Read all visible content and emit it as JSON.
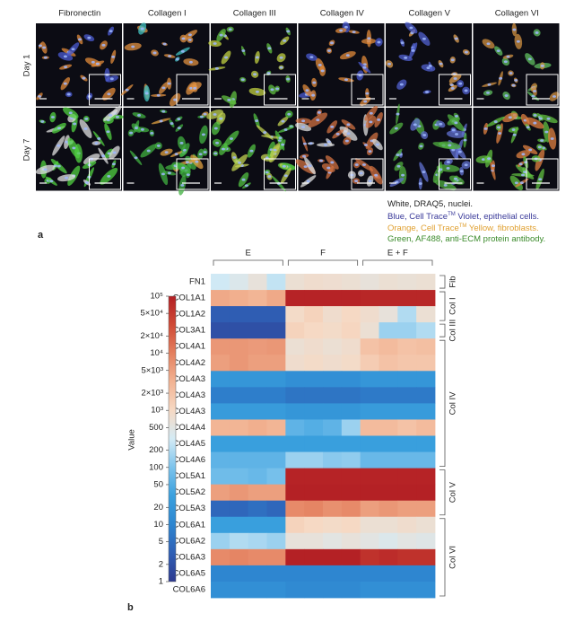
{
  "panel_a": {
    "label": "a",
    "columns": [
      "Fibronectin",
      "Collagen I",
      "Collagen III",
      "Collagen IV",
      "Collagen V",
      "Collagen VI"
    ],
    "rows": [
      "Day 1",
      "Day 7"
    ],
    "legend": [
      [
        "White, DRAQ5, nuclei."
      ],
      [
        "Blue, Cell Trace",
        "TM",
        " Violet, epithelial cells."
      ],
      [
        "Orange, Cell Trace",
        "TM",
        " Yellow, fibroblasts."
      ],
      [
        "Green, AF488, anti-ECM protein antibody."
      ]
    ]
  },
  "panel_b": {
    "label": "b"
  },
  "chart_data": {
    "type": "heatmap",
    "rows": [
      "FN1",
      "COL1A1",
      "COL1A2",
      "COL3A1",
      "COL4A1",
      "COL4A2",
      "COL4A3",
      "COL4A3",
      "COL4A3",
      "COL4A4",
      "COL4A5",
      "COL4A6",
      "COL5A1",
      "COL5A2",
      "COL5A3",
      "COL6A1",
      "COL6A2",
      "COL6A3",
      "COL6A5",
      "COL6A6"
    ],
    "column_groups": [
      "E",
      "F",
      "E + F"
    ],
    "row_groups": [
      {
        "label": "Fib",
        "start": 0,
        "end": 0
      },
      {
        "label": "Col I",
        "start": 1,
        "end": 2
      },
      {
        "label": "Col III",
        "start": 3,
        "end": 3
      },
      {
        "label": "Col IV",
        "start": 4,
        "end": 11
      },
      {
        "label": "Col V",
        "start": 12,
        "end": 14
      },
      {
        "label": "Col VI",
        "start": 15,
        "end": 19
      }
    ],
    "values": [
      [
        300,
        400,
        600,
        250,
        700,
        800,
        750,
        700,
        600,
        700,
        650,
        700
      ],
      [
        4000,
        3500,
        3000,
        4000,
        90000,
        90000,
        90000,
        90000,
        80000,
        80000,
        80000,
        80000
      ],
      [
        3,
        3,
        3,
        3,
        900,
        1200,
        800,
        1000,
        800,
        600,
        200,
        700
      ],
      [
        2,
        2,
        2,
        2,
        1200,
        1000,
        900,
        1100,
        700,
        150,
        150,
        200
      ],
      [
        6000,
        6000,
        5500,
        6000,
        700,
        800,
        700,
        800,
        2000,
        2500,
        2000,
        2200
      ],
      [
        5000,
        6000,
        5000,
        5000,
        800,
        900,
        800,
        900,
        1500,
        2000,
        1800,
        1800
      ],
      [
        20,
        20,
        20,
        20,
        15,
        15,
        15,
        15,
        20,
        20,
        20,
        20
      ],
      [
        8,
        8,
        8,
        8,
        6,
        6,
        6,
        6,
        7,
        7,
        7,
        7
      ],
      [
        25,
        25,
        25,
        25,
        20,
        20,
        20,
        20,
        25,
        25,
        25,
        25
      ],
      [
        3000,
        3000,
        3500,
        3000,
        60,
        50,
        60,
        150,
        2500,
        2500,
        2000,
        2500
      ],
      [
        30,
        30,
        30,
        30,
        30,
        30,
        30,
        30,
        30,
        30,
        30,
        30
      ],
      [
        60,
        60,
        60,
        60,
        150,
        150,
        120,
        130,
        70,
        70,
        70,
        70
      ],
      [
        80,
        80,
        70,
        90,
        90000,
        90000,
        90000,
        90000,
        90000,
        90000,
        90000,
        90000
      ],
      [
        5000,
        6000,
        5000,
        5000,
        95000,
        95000,
        95000,
        95000,
        95000,
        95000,
        95000,
        95000
      ],
      [
        4,
        4,
        5,
        4,
        8000,
        9000,
        7000,
        8000,
        5000,
        6000,
        5000,
        5000
      ],
      [
        30,
        30,
        30,
        30,
        1200,
        1000,
        900,
        1000,
        700,
        700,
        800,
        700
      ],
      [
        150,
        200,
        180,
        150,
        600,
        600,
        500,
        600,
        500,
        400,
        500,
        450
      ],
      [
        8000,
        9000,
        8000,
        8000,
        95000,
        95000,
        95000,
        95000,
        60000,
        70000,
        60000,
        60000
      ],
      [
        10,
        10,
        10,
        10,
        10,
        10,
        10,
        10,
        10,
        10,
        10,
        10
      ],
      [
        15,
        15,
        15,
        15,
        12,
        12,
        12,
        12,
        15,
        15,
        15,
        15
      ]
    ],
    "colorbar": {
      "label": "Value",
      "log_scale": true,
      "lim": [
        1,
        100000
      ],
      "ticks": [
        1,
        2,
        5,
        10,
        20,
        50,
        100,
        200,
        500,
        {
          "value": 1000,
          "label": "10³"
        },
        {
          "value": 2000,
          "label": "2×10³"
        },
        {
          "value": 5000,
          "label": "5×10³"
        },
        {
          "value": 10000,
          "label": "10⁴"
        },
        {
          "value": 20000,
          "label": "2×10⁴"
        },
        {
          "value": 50000,
          "label": "5×10⁴"
        },
        {
          "value": 100000,
          "label": "10⁵"
        }
      ],
      "colors": [
        "#2e3a8f",
        "#2f5fb5",
        "#2e86d0",
        "#3aa0de",
        "#7cc3ec",
        "#d4ebf5",
        "#f6d9c4",
        "#f2b393",
        "#e4805f",
        "#cf4a36",
        "#b31f24"
      ]
    }
  }
}
